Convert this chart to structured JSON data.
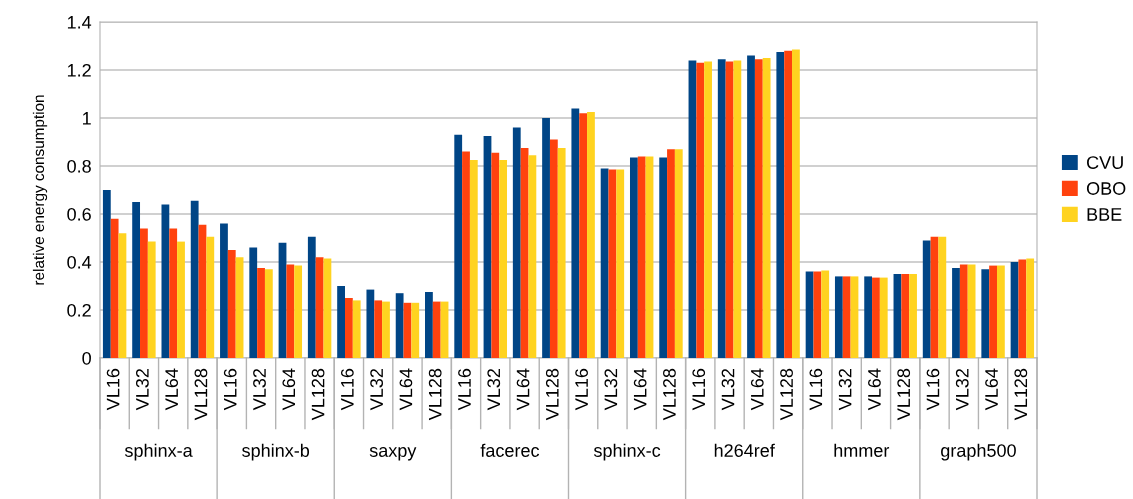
{
  "chart_data": {
    "type": "bar",
    "ylabel": "relative energy consumption",
    "categories": [
      "VL16",
      "VL32",
      "VL64",
      "VL128",
      "VL16",
      "VL32",
      "VL64",
      "VL128",
      "VL16",
      "VL32",
      "VL64",
      "VL128",
      "VL16",
      "VL32",
      "VL64",
      "VL128",
      "VL16",
      "VL32",
      "VL64",
      "VL128",
      "VL16",
      "VL32",
      "VL64",
      "VL128",
      "VL16",
      "VL32",
      "VL64",
      "VL128",
      "VL16",
      "VL32",
      "VL64",
      "VL128"
    ],
    "annotations": [
      "sphinx-a",
      "sphinx-b",
      "saxpy",
      "facerec",
      "sphinx-c",
      "h264ref",
      "hmmer",
      "graph500"
    ],
    "series": [
      {
        "name": "CVU",
        "color": "#004586",
        "values": [
          0.7,
          0.65,
          0.64,
          0.655,
          0.56,
          0.46,
          0.48,
          0.505,
          0.3,
          0.285,
          0.27,
          0.275,
          0.93,
          0.925,
          0.96,
          1.0,
          1.04,
          0.79,
          0.835,
          0.835,
          1.24,
          1.245,
          1.26,
          1.275,
          0.36,
          0.34,
          0.34,
          0.35,
          0.49,
          0.375,
          0.37,
          0.4
        ]
      },
      {
        "name": "OBO",
        "color": "#ff420e",
        "values": [
          0.58,
          0.54,
          0.54,
          0.555,
          0.45,
          0.375,
          0.39,
          0.42,
          0.25,
          0.24,
          0.23,
          0.235,
          0.86,
          0.855,
          0.875,
          0.91,
          1.02,
          0.785,
          0.84,
          0.87,
          1.23,
          1.235,
          1.245,
          1.28,
          0.36,
          0.34,
          0.335,
          0.35,
          0.505,
          0.39,
          0.385,
          0.41
        ]
      },
      {
        "name": "BBE",
        "color": "#ffd320",
        "values": [
          0.52,
          0.485,
          0.485,
          0.505,
          0.42,
          0.37,
          0.385,
          0.415,
          0.24,
          0.235,
          0.23,
          0.235,
          0.825,
          0.825,
          0.845,
          0.875,
          1.025,
          0.785,
          0.84,
          0.87,
          1.235,
          1.24,
          1.25,
          1.285,
          0.365,
          0.34,
          0.335,
          0.35,
          0.505,
          0.39,
          0.385,
          0.415
        ]
      }
    ],
    "ylim": [
      0,
      1.4
    ],
    "yticks": [
      0,
      0.2,
      0.4,
      0.6,
      0.8,
      1,
      1.2,
      1.4
    ],
    "grid": "y",
    "legend": "right"
  }
}
